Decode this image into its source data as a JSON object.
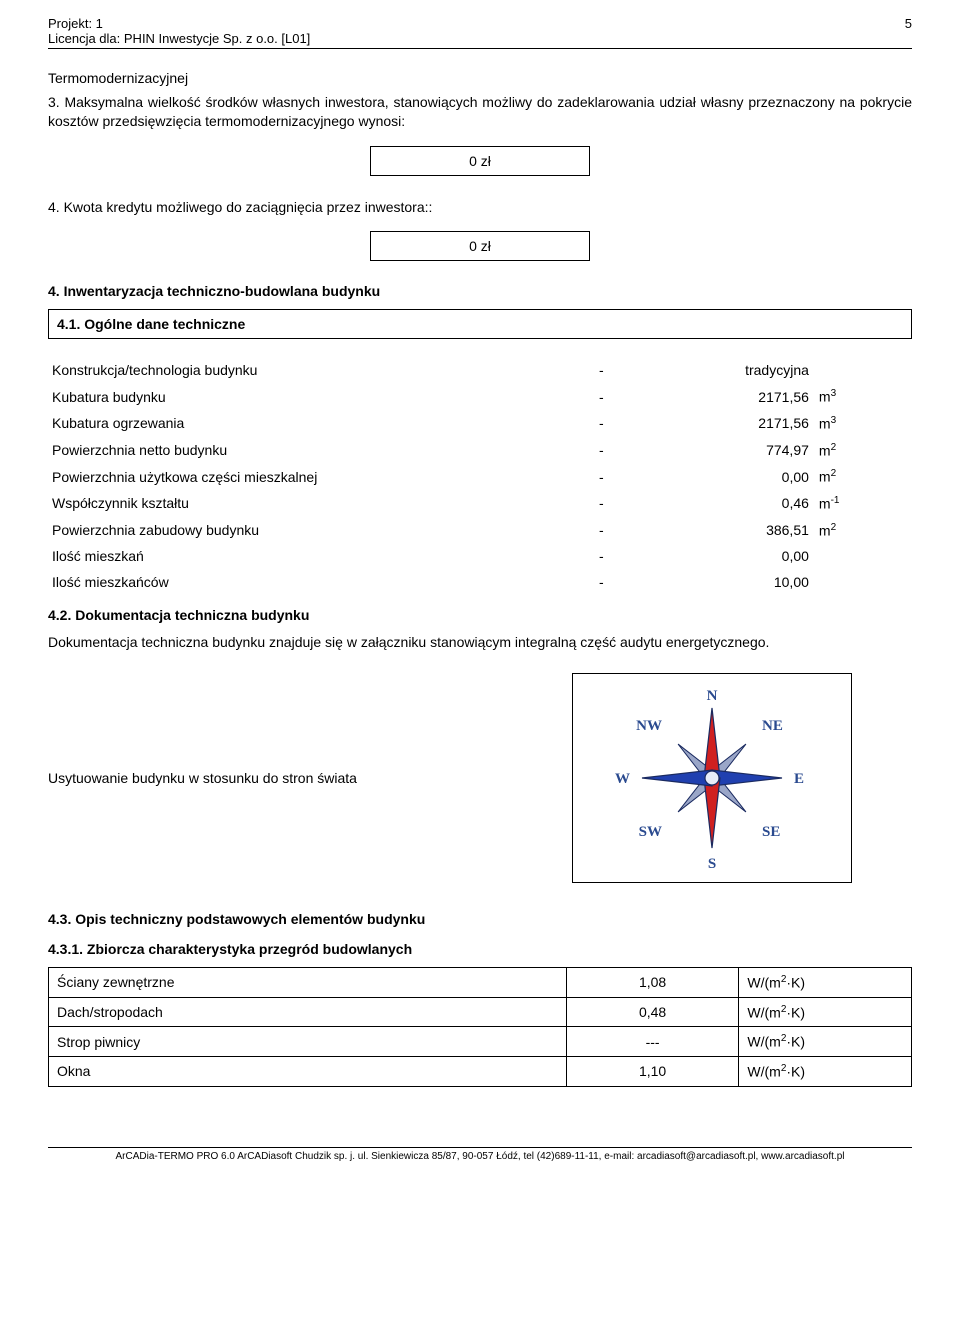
{
  "header": {
    "project_label": "Projekt: 1",
    "license_label": "Licencja dla: PHIN Inwestycje Sp. z o.o. [L01]",
    "page_number": "5"
  },
  "intro": {
    "line1": "Termomodernizacyjnej",
    "line2": "3. Maksymalna wielkość środków własnych inwestora, stanowiących możliwy do zadeklarowania udział własny przeznaczony na pokrycie kosztów przedsięwzięcia termomodernizacyjnego wynosi:",
    "value1": "0 zł",
    "line3": "4. Kwota kredytu możliwego do zaciągnięcia przez inwestora::",
    "value2": "0 zł"
  },
  "section4": {
    "heading": "4. Inwentaryzacja techniczno-budowlana budynku",
    "sub41": "4.1. Ogólne dane techniczne"
  },
  "tech_table": {
    "rows": [
      {
        "label": "Konstrukcja/technologia budynku",
        "value": "tradycyjna",
        "unit": ""
      },
      {
        "label": "Kubatura budynku",
        "value": "2171,56",
        "unit": "m<sup>3</sup>"
      },
      {
        "label": "Kubatura ogrzewania",
        "value": "2171,56",
        "unit": "m<sup>3</sup>"
      },
      {
        "label": "Powierzchnia netto budynku",
        "value": "774,97",
        "unit": "m<sup>2</sup>"
      },
      {
        "label": "Powierzchnia użytkowa części mieszkalnej",
        "value": "0,00",
        "unit": "m<sup>2</sup>"
      },
      {
        "label": "Współczynnik kształtu",
        "value": "0,46",
        "unit": "m<sup>-1</sup>"
      },
      {
        "label": "Powierzchnia zabudowy budynku",
        "value": "386,51",
        "unit": "m<sup>2</sup>"
      },
      {
        "label": "Ilość mieszkań",
        "value": "0,00",
        "unit": ""
      },
      {
        "label": "Ilość mieszkańców",
        "value": "10,00",
        "unit": ""
      }
    ]
  },
  "sub42": {
    "heading": "4.2. Dokumentacja techniczna budynku",
    "note": "Dokumentacja techniczna budynku znajduje się w załączniku stanowiącym integralną część audytu energetycznego."
  },
  "compass": {
    "label": "Usytuowanie budynku w stosunku do stron świata",
    "dirs": {
      "n": "N",
      "ne": "NE",
      "e": "E",
      "se": "SE",
      "s": "S",
      "sw": "SW",
      "w": "W",
      "nw": "NW"
    },
    "colors": {
      "arrow_n": "#d02020",
      "arrow_s": "#d02020",
      "arrow_e": "#2040b0",
      "arrow_w": "#2040b0",
      "diag": "#9aa6c8",
      "stroke": "#1a2a60"
    }
  },
  "sub43": {
    "heading": "4.3. Opis techniczny podstawowych elementów budynku",
    "sub431": "4.3.1. Zbiorcza charakterystyka przegród budowlanych"
  },
  "wall_table": {
    "unit_html": "W/(m<sup>2</sup>·K)",
    "rows": [
      {
        "label": "Ściany zewnętrzne",
        "value": "1,08"
      },
      {
        "label": "Dach/stropodach",
        "value": "0,48"
      },
      {
        "label": "Strop piwnicy",
        "value": "---"
      },
      {
        "label": "Okna",
        "value": "1,10"
      }
    ]
  },
  "footer": {
    "text": "ArCADia-TERMO PRO 6.0 ArCADiasoft Chudzik sp. j. ul. Sienkiewicza 85/87, 90-057 Łódź, tel (42)689-11-11, e-mail: arcadiasoft@arcadiasoft.pl, www.arcadiasoft.pl"
  }
}
